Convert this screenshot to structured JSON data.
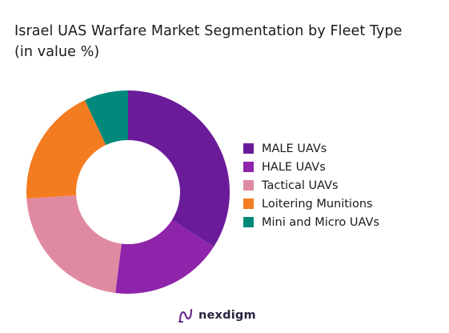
{
  "title_line1": "Israel UAS Warfare Market Segmentation by Fleet Type",
  "title_line2": "(in value %)",
  "brand": {
    "name": "nexdigm",
    "logo_icon": "nexdigm-logo-icon"
  },
  "chart_data": {
    "type": "pie",
    "variant": "donut",
    "title": "Israel UAS Warfare Market Segmentation by Fleet Type (in value %)",
    "legend_position": "right",
    "series": [
      {
        "name": "MALE UAVs",
        "value": 34,
        "color": "#6a1b9a"
      },
      {
        "name": "HALE UAVs",
        "value": 18,
        "color": "#8e24aa"
      },
      {
        "name": "Tactical UAVs",
        "value": 22,
        "color": "#e08aa2"
      },
      {
        "name": "Loitering Munitions",
        "value": 19,
        "color": "#f47c20"
      },
      {
        "name": "Mini and Micro UAVs",
        "value": 7,
        "color": "#00897b"
      }
    ]
  }
}
